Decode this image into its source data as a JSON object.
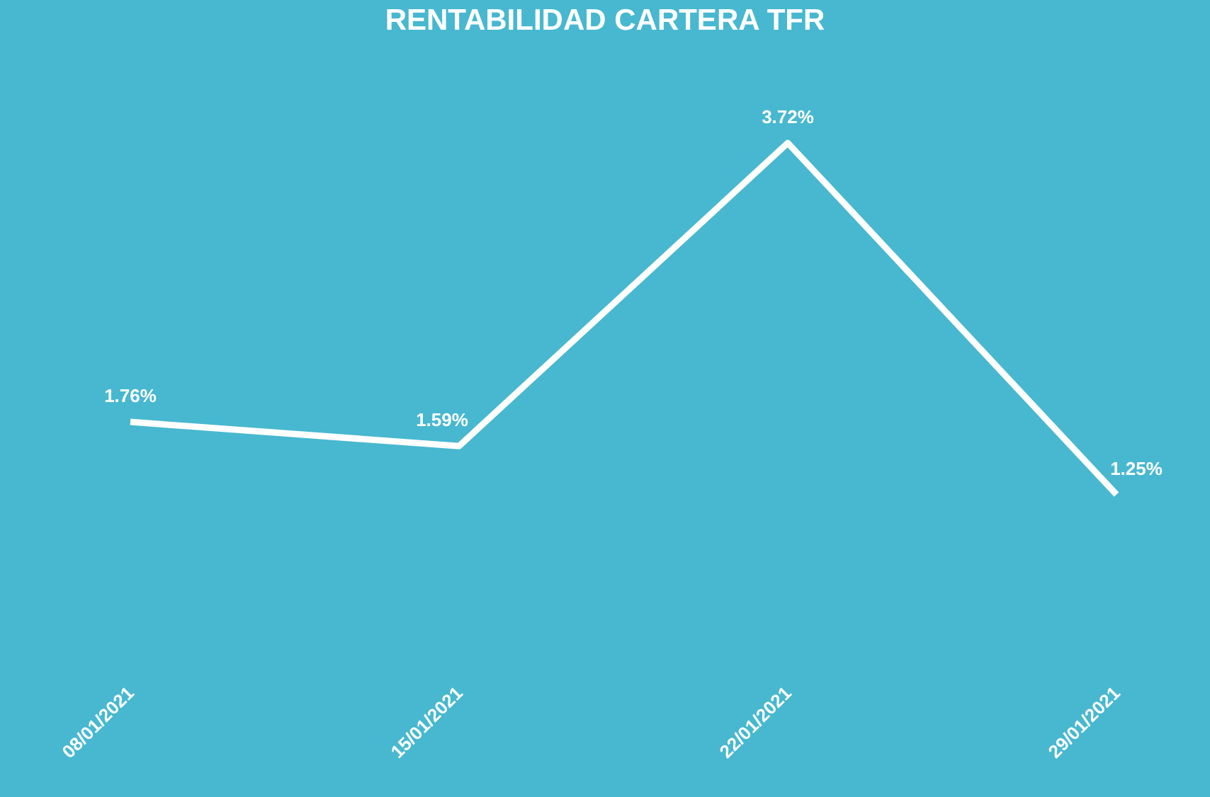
{
  "chart_data": {
    "type": "line",
    "title": "RENTABILIDAD CARTERA TFR",
    "categories": [
      "08/01/2021",
      "15/01/2021",
      "22/01/2021",
      "29/01/2021"
    ],
    "values": [
      1.76,
      1.59,
      3.72,
      1.25
    ],
    "value_labels": [
      "1.76%",
      "1.59%",
      "3.72%",
      "1.25%"
    ],
    "color": "#ffffff",
    "grid": false
  }
}
